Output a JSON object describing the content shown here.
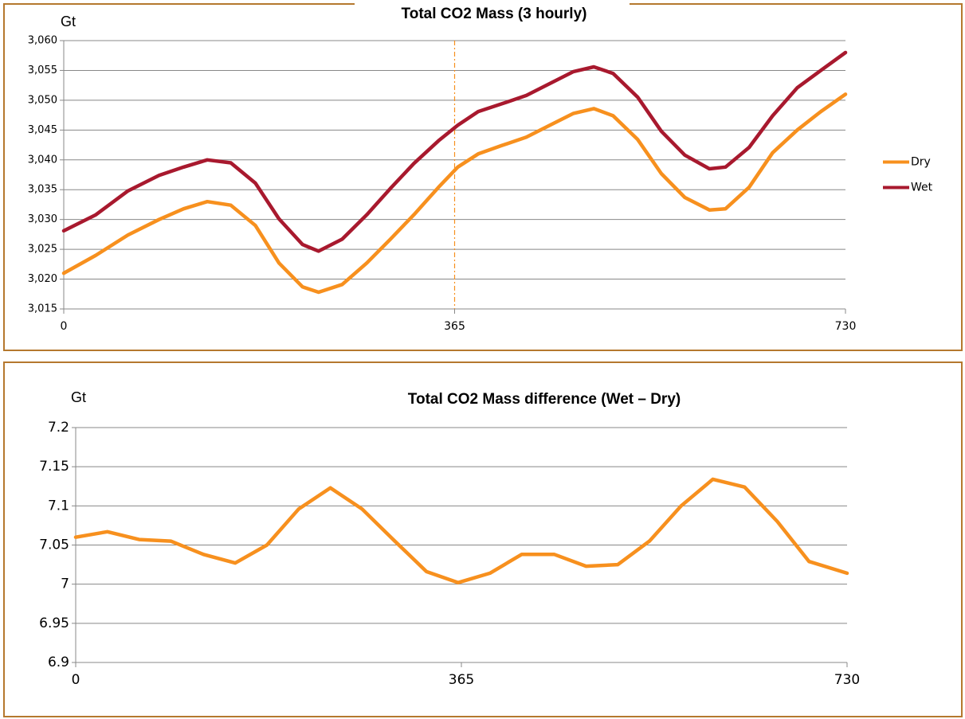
{
  "chart_data": [
    {
      "type": "line",
      "title": "Total  CO2 Mass (3 hourly)",
      "y_label": "Gt",
      "x": [
        0,
        30,
        60,
        89,
        112,
        134,
        156,
        179,
        201,
        223,
        238,
        260,
        283,
        305,
        327,
        350,
        368,
        387,
        409,
        432,
        454,
        476,
        495,
        513,
        536,
        558,
        580,
        603,
        618,
        640,
        662,
        685,
        707,
        730
      ],
      "series": [
        {
          "name": "Dry",
          "color": "#f7901e",
          "values": [
            3021,
            3024,
            3027.4,
            3030,
            3031.8,
            3033,
            3032.4,
            3029,
            3022.7,
            3018.7,
            3017.8,
            3019.1,
            3022.7,
            3026.7,
            3030.8,
            3035.4,
            3038.8,
            3041,
            3042.4,
            3043.8,
            3045.8,
            3047.8,
            3048.6,
            3047.4,
            3043.4,
            3037.7,
            3033.7,
            3031.6,
            3031.8,
            3035.4,
            3041.2,
            3045,
            3048.1,
            3051
          ]
        },
        {
          "name": "Wet",
          "color": "#a8192e",
          "values": [
            3028.1,
            3030.8,
            3034.8,
            3037.4,
            3038.8,
            3040,
            3039.5,
            3036.1,
            3030.1,
            3025.8,
            3024.7,
            3026.7,
            3030.8,
            3035.2,
            3039.4,
            3043.2,
            3045.8,
            3048.1,
            3049.4,
            3050.8,
            3052.8,
            3054.8,
            3055.6,
            3054.5,
            3050.5,
            3044.8,
            3040.8,
            3038.5,
            3038.8,
            3042.1,
            3047.4,
            3052.1,
            3055,
            3058
          ]
        }
      ],
      "xlim": [
        0,
        730
      ],
      "xticks": [
        0,
        365,
        730
      ],
      "ylim": [
        3015,
        3060
      ],
      "yticks": [
        {
          "value": 3015,
          "label": "3,015"
        },
        {
          "value": 3020,
          "label": "3,020"
        },
        {
          "value": 3025,
          "label": "3,025"
        },
        {
          "value": 3030,
          "label": "3,030"
        },
        {
          "value": 3035,
          "label": "3,035"
        },
        {
          "value": 3040,
          "label": "3,040"
        },
        {
          "value": 3045,
          "label": "3,045"
        },
        {
          "value": 3050,
          "label": "3,050"
        },
        {
          "value": 3055,
          "label": "3,055"
        },
        {
          "value": 3060,
          "label": "3,060"
        }
      ],
      "grid": true,
      "legend": "right",
      "vline_x": 365
    },
    {
      "type": "line",
      "title": "Total CO2 Mass difference (Wet – Dry)",
      "y_label": "Gt",
      "x": [
        0,
        30,
        60,
        90,
        121,
        151,
        181,
        211,
        241,
        271,
        302,
        332,
        362,
        392,
        422,
        453,
        483,
        513,
        543,
        573,
        603,
        633,
        664,
        694,
        730
      ],
      "values": [
        7.06,
        7.067,
        7.057,
        7.055,
        7.038,
        7.027,
        7.05,
        7.096,
        7.123,
        7.096,
        7.055,
        7.016,
        7.002,
        7.014,
        7.038,
        7.038,
        7.023,
        7.025,
        7.055,
        7.1,
        7.134,
        7.124,
        7.08,
        7.029,
        7.014
      ],
      "color": "#f7901e",
      "xlim": [
        0,
        730
      ],
      "xticks": [
        0,
        365,
        730
      ],
      "ylim": [
        6.9,
        7.2
      ],
      "yticks": [
        6.9,
        6.95,
        7,
        7.05,
        7.1,
        7.15,
        7.2
      ],
      "grid": true
    }
  ]
}
